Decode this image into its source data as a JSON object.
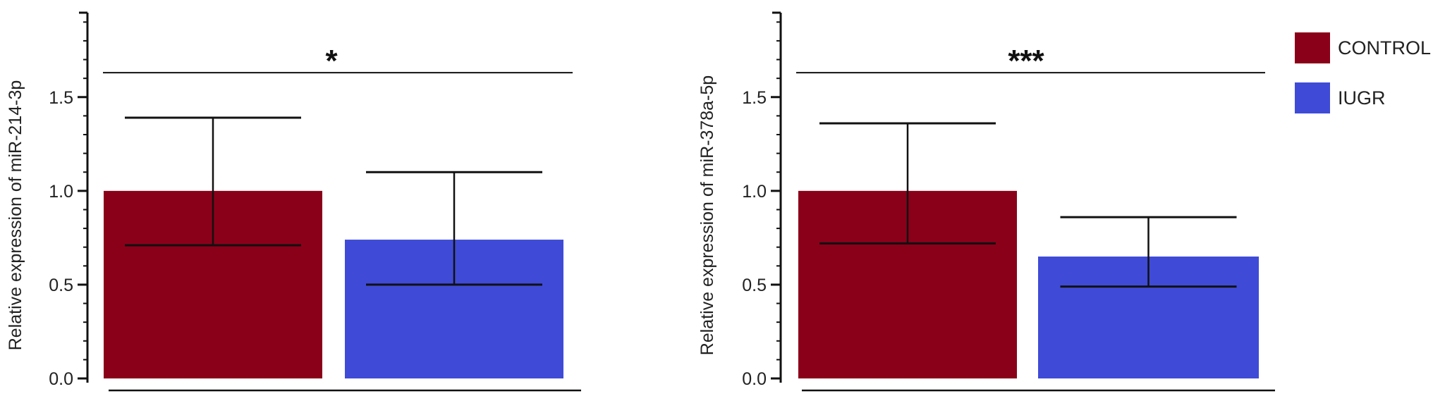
{
  "chart_data": [
    {
      "type": "bar",
      "ylabel": "Relative expression of miR-214-3p",
      "yticks": [
        0.0,
        0.5,
        1.0,
        1.5
      ],
      "ytick_labels": [
        "0.0",
        "0.5",
        "1.0",
        "1.5"
      ],
      "ylim": [
        0,
        1.95
      ],
      "series": [
        {
          "name": "CONTROL",
          "value": 1.0,
          "error_low": 0.71,
          "error_high": 1.39,
          "color": "#8B0019"
        },
        {
          "name": "IUGR",
          "value": 0.74,
          "error_low": 0.5,
          "error_high": 1.1,
          "color": "#3F4BD6"
        }
      ],
      "significance": {
        "label": "*",
        "y": 1.63
      }
    },
    {
      "type": "bar",
      "ylabel": "Relative expression of miR-378a-5p",
      "yticks": [
        0.0,
        0.5,
        1.0,
        1.5
      ],
      "ytick_labels": [
        "0.0",
        "0.5",
        "1.0",
        "1.5"
      ],
      "ylim": [
        0,
        1.95
      ],
      "series": [
        {
          "name": "CONTROL",
          "value": 1.0,
          "error_low": 0.72,
          "error_high": 1.36,
          "color": "#8B0019"
        },
        {
          "name": "IUGR",
          "value": 0.65,
          "error_low": 0.49,
          "error_high": 0.86,
          "color": "#3F4BD6"
        }
      ],
      "significance": {
        "label": "***",
        "y": 1.63
      }
    }
  ],
  "legend": {
    "placement": "top-right",
    "items": [
      {
        "label": "CONTROL",
        "color": "#8B0019"
      },
      {
        "label": "IUGR",
        "color": "#3F4BD6"
      }
    ]
  }
}
